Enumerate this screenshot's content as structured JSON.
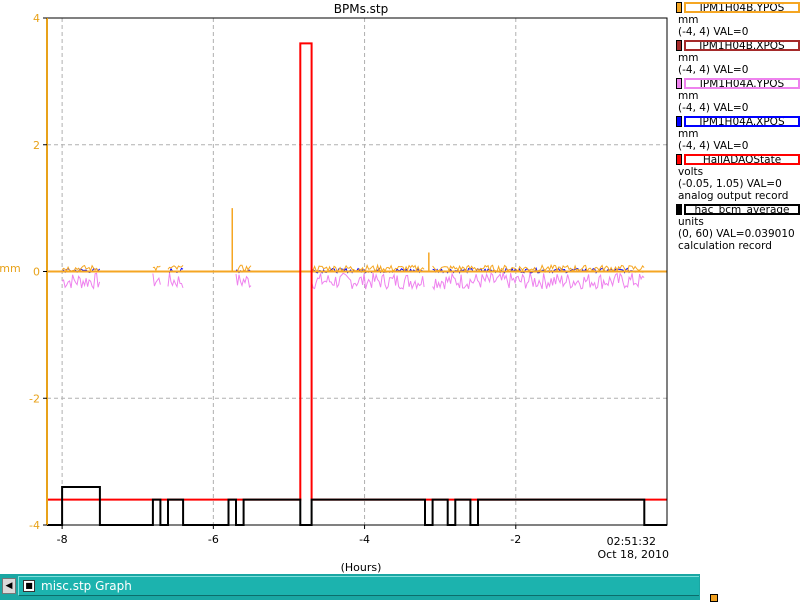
{
  "chart_data": {
    "type": "line",
    "title": "BPMs.stp",
    "xlabel": "(Hours)",
    "ylabel": "mm",
    "xlim": [
      -8.2,
      0
    ],
    "ylim": [
      -4,
      4
    ],
    "x_ticks": [
      -8,
      -6,
      -4,
      -2
    ],
    "x_tick_labels": [
      "-8",
      "-6",
      "-4",
      "-2"
    ],
    "y_ticks": [
      -4,
      -2,
      0,
      2,
      4
    ],
    "y_tick_labels": [
      "-4",
      "-2",
      "0",
      "2",
      "4"
    ],
    "grid": true,
    "end_time": "02:51:32",
    "end_date": "Oct 18, 2010",
    "series": [
      {
        "name": "HallADAQState",
        "color": "#ff0000",
        "x": [
          -8.2,
          -4.85,
          -4.85,
          -4.7,
          -4.7,
          0
        ],
        "y": [
          -3.6,
          -3.6,
          3.6,
          3.6,
          -3.6,
          -3.6
        ]
      },
      {
        "name": "hac_bcm_average",
        "color": "#000000",
        "x": [
          -8.2,
          -8.0,
          -8.0,
          -7.5,
          -7.5,
          -6.8,
          -6.8,
          -6.7,
          -6.7,
          -6.6,
          -6.6,
          -6.4,
          -6.4,
          -5.8,
          -5.8,
          -5.7,
          -5.7,
          -5.6,
          -5.6,
          -4.85,
          -4.85,
          -4.7,
          -4.7,
          -3.2,
          -3.2,
          -3.1,
          -3.1,
          -2.9,
          -2.9,
          -2.8,
          -2.8,
          -2.6,
          -2.6,
          -2.5,
          -2.5,
          -0.3,
          -0.3,
          0
        ],
        "y": [
          -4.0,
          -4.0,
          -3.4,
          -3.4,
          -4.0,
          -4.0,
          -3.6,
          -3.6,
          -4.0,
          -4.0,
          -3.6,
          -3.6,
          -4.0,
          -4.0,
          -3.6,
          -3.6,
          -4.0,
          -4.0,
          -3.6,
          -3.6,
          -4.0,
          -4.0,
          -3.6,
          -3.6,
          -4.0,
          -4.0,
          -3.6,
          -3.6,
          -4.0,
          -4.0,
          -3.6,
          -3.6,
          -4.0,
          -4.0,
          -3.6,
          -3.6,
          -4.0,
          -4.0
        ]
      },
      {
        "name": "IPM1H04A.YPOS",
        "color": "#ee82ee",
        "band": [
          -0.28,
          -0.02
        ],
        "segments": [
          [
            -8.0,
            -7.5
          ],
          [
            -6.8,
            -6.7
          ],
          [
            -6.6,
            -6.4
          ],
          [
            -5.7,
            -5.5
          ],
          [
            -4.7,
            -3.2
          ],
          [
            -3.1,
            -0.3
          ]
        ]
      },
      {
        "name": "IPM1H04A.XPOS",
        "color": "#0000ff",
        "band": [
          -0.02,
          0.05
        ],
        "segments": [
          [
            -8.0,
            -7.5
          ],
          [
            -6.6,
            -6.4
          ],
          [
            -5.7,
            -5.5
          ],
          [
            -4.7,
            -3.2
          ],
          [
            -3.1,
            -0.3
          ]
        ]
      },
      {
        "name": "IPM1H04B.YPOS",
        "color": "#f5a623",
        "band": [
          0.0,
          0.1
        ],
        "segments": [
          [
            -8.0,
            -7.5
          ],
          [
            -6.8,
            -6.7
          ],
          [
            -6.6,
            -6.4
          ],
          [
            -5.7,
            -5.5
          ],
          [
            -4.7,
            -3.2
          ],
          [
            -3.1,
            -0.3
          ]
        ],
        "baseline": 0.0,
        "spikes": [
          {
            "x": -5.75,
            "y": 1.0
          },
          {
            "x": -3.15,
            "y": 0.3
          }
        ]
      },
      {
        "name": "IPM1H04B.XPOS",
        "color": "#a52a2a",
        "band": [
          0.0,
          0.03
        ],
        "segments": []
      }
    ]
  },
  "legend": [
    {
      "label": "IPM1H04B.YPOS",
      "color": "#f5a623",
      "sq_color": "#f5a623",
      "lines": [
        "mm",
        "(-4, 4) VAL=0"
      ]
    },
    {
      "label": "IPM1H04B.XPOS",
      "color": "#a52a2a",
      "sq_color": "#a52a2a",
      "lines": [
        "mm",
        "(-4, 4) VAL=0"
      ]
    },
    {
      "label": "IPM1H04A.YPOS",
      "color": "#ee82ee",
      "sq_color": "#ee82ee",
      "lines": [
        "mm",
        "(-4, 4) VAL=0"
      ]
    },
    {
      "label": "IPM1H04A.XPOS",
      "color": "#0000ff",
      "sq_color": "#0000ff",
      "lines": [
        "mm",
        "(-4, 4) VAL=0"
      ]
    },
    {
      "label": "HallADAQState",
      "color": "#ff0000",
      "sq_color": "#ff0000",
      "lines": [
        "volts",
        "(-0.05, 1.05) VAL=0",
        "analog output record"
      ]
    },
    {
      "label": "hac_bcm_average",
      "color": "#000000",
      "sq_color": "#000000",
      "lines": [
        "units",
        "(0, 60) VAL=0.039010",
        "calculation record"
      ]
    }
  ],
  "taskbar": {
    "arrow": "◀",
    "window_icon": "■",
    "window_title": "misc.stp Graph",
    "accent_color": "#1aa7a3"
  }
}
